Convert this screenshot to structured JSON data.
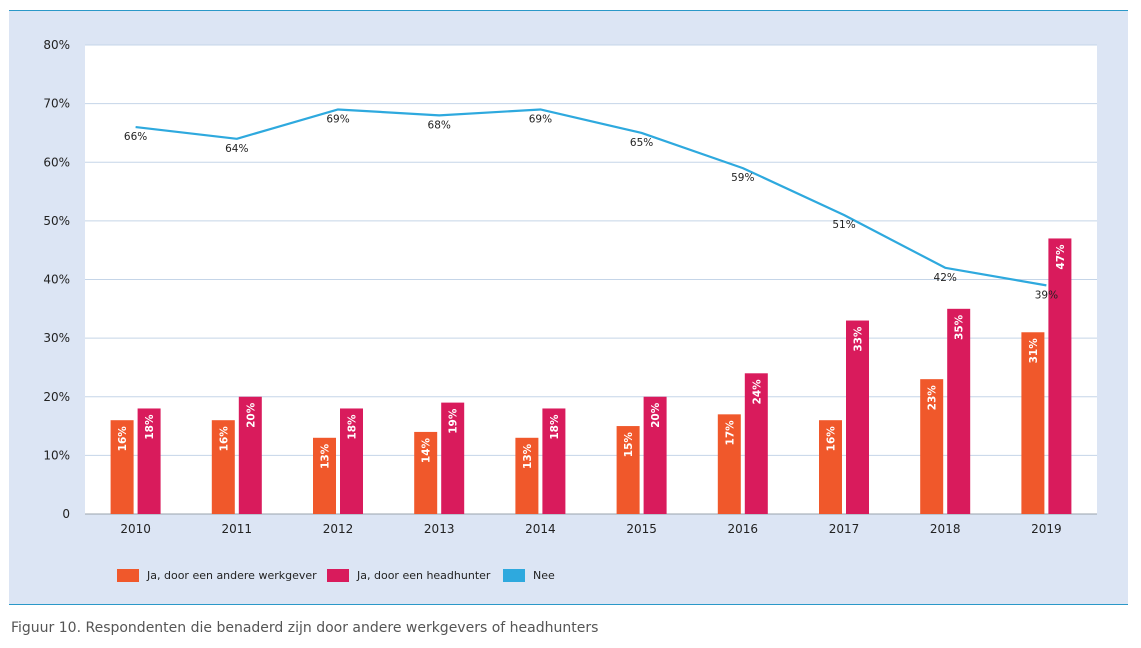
{
  "chart_data": {
    "type": "bar",
    "categories": [
      "2010",
      "2011",
      "2012",
      "2013",
      "2014",
      "2015",
      "2016",
      "2017",
      "2018",
      "2019"
    ],
    "series": [
      {
        "name": "Ja, door een andere werkgever",
        "type": "bar",
        "color": "#f0582b",
        "values": [
          16,
          16,
          13,
          14,
          13,
          15,
          17,
          16,
          23,
          31
        ],
        "labels": [
          "16%",
          "16%",
          "13%",
          "14%",
          "13%",
          "15%",
          "17%",
          "16%",
          "23%",
          "31%"
        ]
      },
      {
        "name": "Ja, door een headhunter",
        "type": "bar",
        "color": "#d91b5c",
        "values": [
          18,
          20,
          18,
          19,
          18,
          20,
          24,
          33,
          35,
          47
        ],
        "labels": [
          "18%",
          "20%",
          "18%",
          "19%",
          "18%",
          "20%",
          "24%",
          "33%",
          "35%",
          "47%"
        ]
      },
      {
        "name": "Nee",
        "type": "line",
        "color": "#2ea9de",
        "values": [
          66,
          64,
          69,
          68,
          69,
          65,
          59,
          51,
          42,
          39
        ],
        "labels": [
          "66%",
          "64%",
          "69%",
          "68%",
          "69%",
          "65%",
          "59%",
          "51%",
          "42%",
          "39%"
        ]
      }
    ],
    "yticks": [
      0,
      10,
      20,
      30,
      40,
      50,
      60,
      70,
      80
    ],
    "ytick_labels": [
      "0",
      "10%",
      "20%",
      "30%",
      "40%",
      "50%",
      "60%",
      "70%",
      "80%"
    ],
    "ylim": [
      0,
      80
    ],
    "grid": true,
    "legend_position": "bottom-left"
  },
  "caption": "Figuur 10. Respondenten die benaderd zijn door andere werkgevers of headhunters"
}
